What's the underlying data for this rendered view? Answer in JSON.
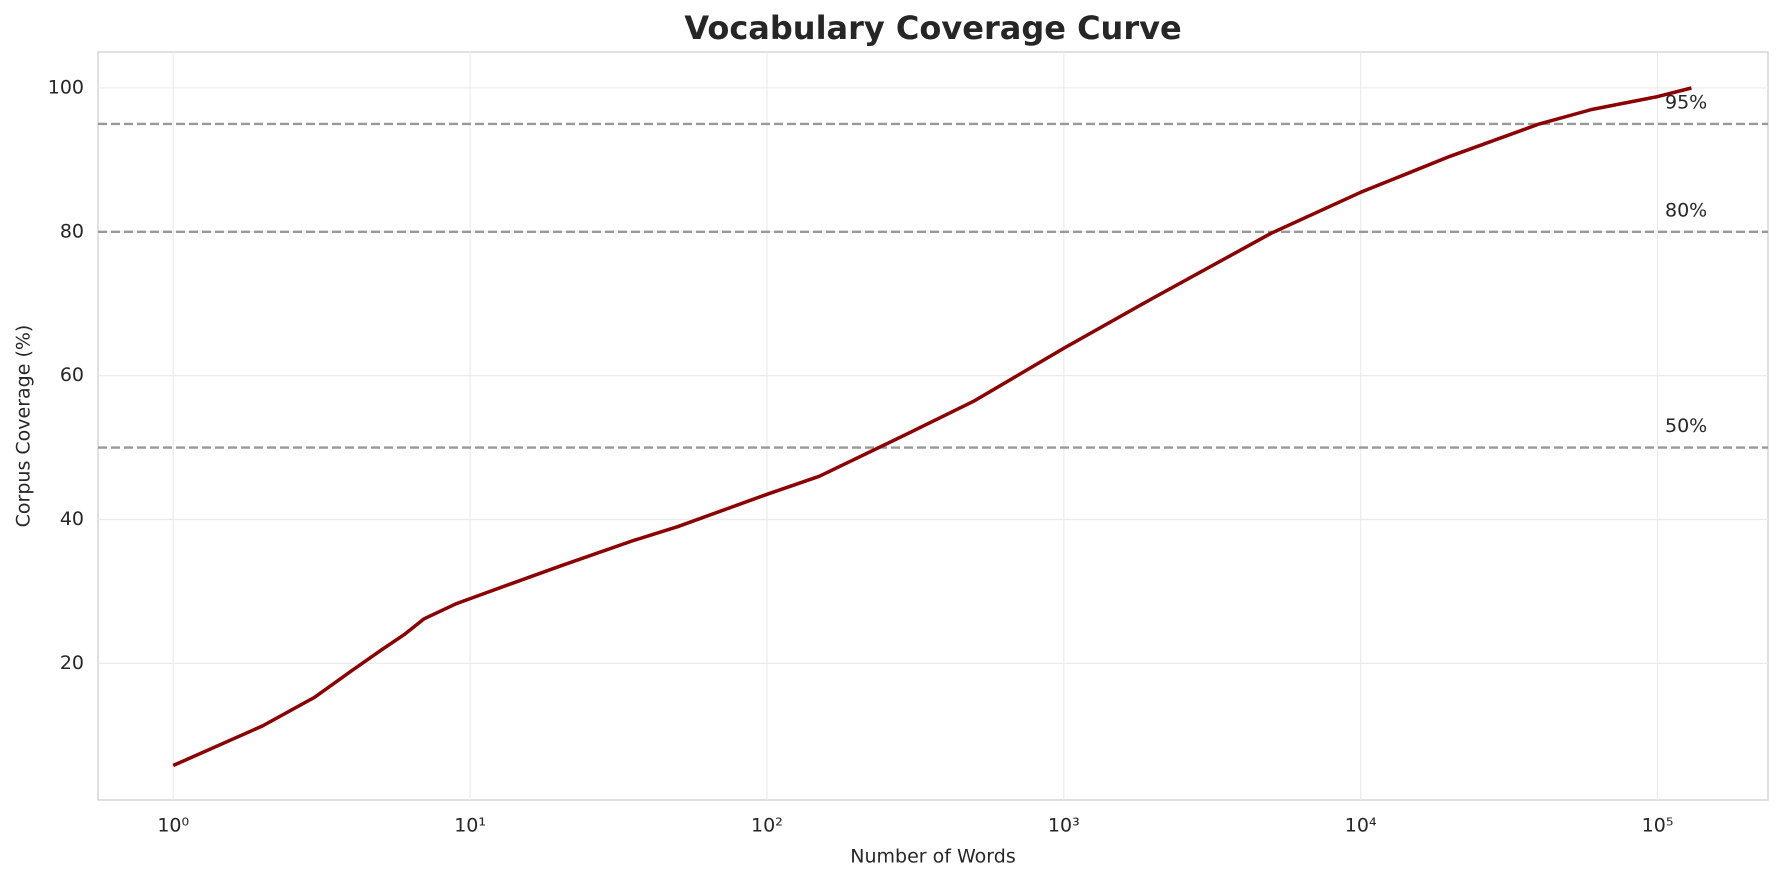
{
  "chart_data": {
    "type": "line",
    "title": "Vocabulary Coverage Curve",
    "x_label": "Number of Words",
    "y_label": "Corpus Coverage (%)",
    "x_scale": "log",
    "grid": true,
    "xlim": [
      0.558,
      235500
    ],
    "ylim": [
      1,
      105
    ],
    "xticks": [
      {
        "value": 1,
        "label": "10⁰"
      },
      {
        "value": 10,
        "label": "10¹"
      },
      {
        "value": 100,
        "label": "10²"
      },
      {
        "value": 1000,
        "label": "10³"
      },
      {
        "value": 10000,
        "label": "10⁴"
      },
      {
        "value": 100000,
        "label": "10⁵"
      }
    ],
    "yticks": [
      20,
      40,
      60,
      80,
      100
    ],
    "series": [
      {
        "color": "#8b0000",
        "x": [
          1,
          2,
          3,
          4,
          5,
          6,
          7,
          9,
          10,
          20,
          35,
          50,
          100,
          150,
          200,
          300,
          500,
          1000,
          2000,
          5000,
          10000,
          20000,
          40000,
          60000,
          100000,
          130000
        ],
        "values": [
          5.8,
          11.3,
          15.3,
          19,
          21.8,
          24,
          26.2,
          28.3,
          29,
          33.5,
          37,
          39,
          43.5,
          46,
          48.5,
          52,
          56.5,
          63.8,
          70.8,
          79.8,
          85.5,
          90.5,
          95,
          97,
          98.8,
          100
        ]
      }
    ],
    "hlines": [
      {
        "value": 95,
        "label": "95%"
      },
      {
        "value": 80,
        "label": "80%"
      },
      {
        "value": 50,
        "label": "50%"
      }
    ],
    "hline_color": "#999999"
  }
}
